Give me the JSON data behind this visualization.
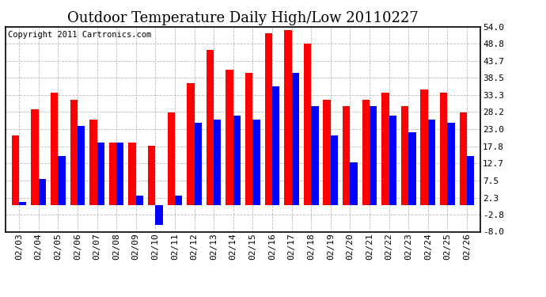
{
  "title": "Outdoor Temperature Daily High/Low 20110227",
  "copyright": "Copyright 2011 Cartronics.com",
  "dates": [
    "02/03",
    "02/04",
    "02/05",
    "02/06",
    "02/07",
    "02/08",
    "02/09",
    "02/10",
    "02/11",
    "02/12",
    "02/13",
    "02/14",
    "02/15",
    "02/16",
    "02/17",
    "02/18",
    "02/19",
    "02/20",
    "02/21",
    "02/22",
    "02/23",
    "02/24",
    "02/25",
    "02/26"
  ],
  "highs": [
    21,
    29,
    34,
    32,
    26,
    19,
    19,
    18,
    28,
    37,
    47,
    41,
    40,
    52,
    53,
    49,
    32,
    30,
    32,
    34,
    30,
    35,
    34,
    28
  ],
  "lows": [
    1,
    8,
    15,
    24,
    19,
    19,
    3,
    -6,
    3,
    25,
    26,
    27,
    26,
    36,
    40,
    30,
    21,
    13,
    30,
    27,
    22,
    26,
    25,
    15
  ],
  "high_color": "#ff0000",
  "low_color": "#0000ff",
  "bg_color": "#ffffff",
  "grid_color": "#bbbbbb",
  "yticks": [
    54.0,
    48.8,
    43.7,
    38.5,
    33.3,
    28.2,
    23.0,
    17.8,
    12.7,
    7.5,
    2.3,
    -2.8,
    -8.0
  ],
  "ylim": [
    -8.0,
    54.0
  ],
  "bar_width": 0.38,
  "title_fontsize": 13,
  "tick_fontsize": 8,
  "copyright_fontsize": 7.5
}
